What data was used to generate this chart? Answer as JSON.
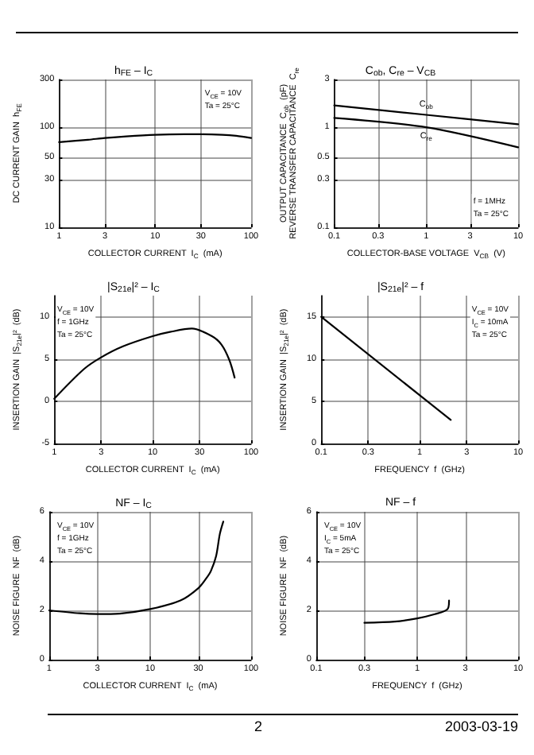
{
  "chart_data": [
    {
      "type": "line",
      "title": "h$_{FE}$ – I$_{C}$",
      "xlabel": "COLLECTOR CURRENT  I$_{C}$  (mA)",
      "ylabel": "DC CURRENT GAIN  h$_{FE}$",
      "log": "xy",
      "grid": true,
      "marker": "none",
      "line_style": "solid",
      "xlim": [
        1,
        100
      ],
      "xticks": [
        1,
        3,
        10,
        30,
        100
      ],
      "ylim": [
        10,
        300
      ],
      "yticks": [
        10,
        30,
        50,
        100,
        300
      ],
      "x": [
        1,
        2,
        3,
        5,
        10,
        20,
        30,
        50,
        70,
        100
      ],
      "series": [
        {
          "color": "#000000",
          "values": [
            71,
            75,
            78,
            81,
            84,
            85,
            85,
            84,
            82,
            78
          ]
        }
      ],
      "annotations": [
        "V$_{CE}$ = 10V",
        "Ta = 25°C"
      ]
    },
    {
      "type": "line",
      "title": "C$_{ob}$, C$_{re}$ – V$_{CB}$",
      "xlabel": "COLLECTOR-BASE VOLTAGE  V$_{CB}$  (V)",
      "ylabel": "OUTPUT CAPACITANCE  C$_{ob}$  (pF)\nREVERSE TRANSFER CAPACITANCE  C$_{re}$",
      "log": "xy",
      "grid": true,
      "marker": "none",
      "line_style": "solid",
      "xlim": [
        0.1,
        10
      ],
      "xticks": [
        0.1,
        0.3,
        1,
        3,
        10
      ],
      "ylim": [
        0.1,
        3
      ],
      "yticks": [
        0.1,
        0.3,
        0.5,
        1,
        3
      ],
      "x": [
        0.1,
        1,
        10
      ],
      "series": [
        {
          "name": "C$_{ob}$",
          "color": "#000000",
          "values": [
            1.65,
            1.33,
            1.07
          ]
        },
        {
          "name": "C$_{re}$",
          "color": "#000000",
          "values": [
            1.24,
            1.0,
            0.63
          ]
        }
      ],
      "annotations": [
        "f = 1MHz",
        "Ta = 25°C"
      ]
    },
    {
      "type": "line",
      "title": "|S$_{21e}$|² – I$_{C}$",
      "xlabel": "COLLECTOR CURRENT  I$_{C}$  (mA)",
      "ylabel": "INSERTION GAIN  |S$_{21e}$|²  (dB)",
      "log": "x",
      "grid": true,
      "marker": "none",
      "line_style": "solid",
      "xlim": [
        1,
        100
      ],
      "xticks": [
        1,
        3,
        10,
        30,
        100
      ],
      "ylim": [
        -5,
        12.5
      ],
      "yticks": [
        -5,
        0,
        5,
        10
      ],
      "x": [
        1,
        2,
        3,
        5,
        10,
        15,
        25,
        40,
        50,
        60,
        68
      ],
      "series": [
        {
          "color": "#000000",
          "values": [
            0.3,
            3.8,
            5.2,
            6.5,
            7.7,
            8.2,
            8.6,
            7.7,
            6.7,
            4.9,
            2.8
          ]
        }
      ],
      "annotations": [
        "V$_{CE}$ = 10V",
        "f = 1GHz",
        "Ta = 25°C"
      ]
    },
    {
      "type": "line",
      "title": "|S$_{21e}$|² – f",
      "xlabel": "FREQUENCY  f  (GHz)",
      "ylabel": "INSERTION GAIN  |S$_{21e}$|²  (dB)",
      "log": "x",
      "grid": true,
      "marker": "none",
      "line_style": "solid",
      "xlim": [
        0.1,
        10
      ],
      "xticks": [
        0.1,
        0.3,
        1,
        3,
        10
      ],
      "ylim": [
        0,
        17.5
      ],
      "yticks": [
        0,
        5,
        10,
        15
      ],
      "x": [
        0.1,
        2.07
      ],
      "series": [
        {
          "color": "#000000",
          "values": [
            15,
            2.8
          ]
        }
      ],
      "annotations": [
        "V$_{CE}$ = 10V",
        "I$_{C}$ = 10mA",
        "Ta = 25°C"
      ]
    },
    {
      "type": "line",
      "title": "NF – I$_{C}$",
      "xlabel": "COLLECTOR CURRENT  I$_{C}$  (mA)",
      "ylabel": "NOISE FIGURE  NF  (dB)",
      "log": "x",
      "grid": true,
      "marker": "none",
      "line_style": "solid",
      "xlim": [
        1,
        100
      ],
      "xticks": [
        1,
        3,
        10,
        30,
        100
      ],
      "ylim": [
        0,
        6
      ],
      "yticks": [
        0,
        2,
        4,
        6
      ],
      "x": [
        1,
        2,
        3,
        5,
        10,
        20,
        30,
        36,
        40,
        45,
        49,
        53
      ],
      "series": [
        {
          "color": "#000000",
          "values": [
            2.0,
            1.88,
            1.85,
            1.87,
            2.05,
            2.4,
            2.9,
            3.3,
            3.6,
            4.2,
            5.1,
            5.6
          ]
        }
      ],
      "annotations": [
        "V$_{CE}$ = 10V",
        "f = 1GHz",
        "Ta = 25°C"
      ]
    },
    {
      "type": "line",
      "title": "NF – f",
      "xlabel": "FREQUENCY  f  (GHz)",
      "ylabel": "NOISE FIGURE  NF  (dB)",
      "log": "x",
      "grid": true,
      "marker": "none",
      "line_style": "solid",
      "xlim": [
        0.1,
        10
      ],
      "xticks": [
        0.1,
        0.3,
        1,
        3,
        10
      ],
      "ylim": [
        0,
        6
      ],
      "yticks": [
        0,
        2,
        4,
        6
      ],
      "x": [
        0.3,
        0.6,
        1,
        1.5,
        2,
        2.07
      ],
      "series": [
        {
          "color": "#000000",
          "values": [
            1.5,
            1.55,
            1.68,
            1.85,
            2.05,
            2.4
          ]
        }
      ],
      "annotations": [
        "V$_{CE}$ = 10V",
        "I$_{C}$ = 5mA",
        "Ta = 25°C",
        "2",
        "2003-03-19"
      ]
    }
  ]
}
